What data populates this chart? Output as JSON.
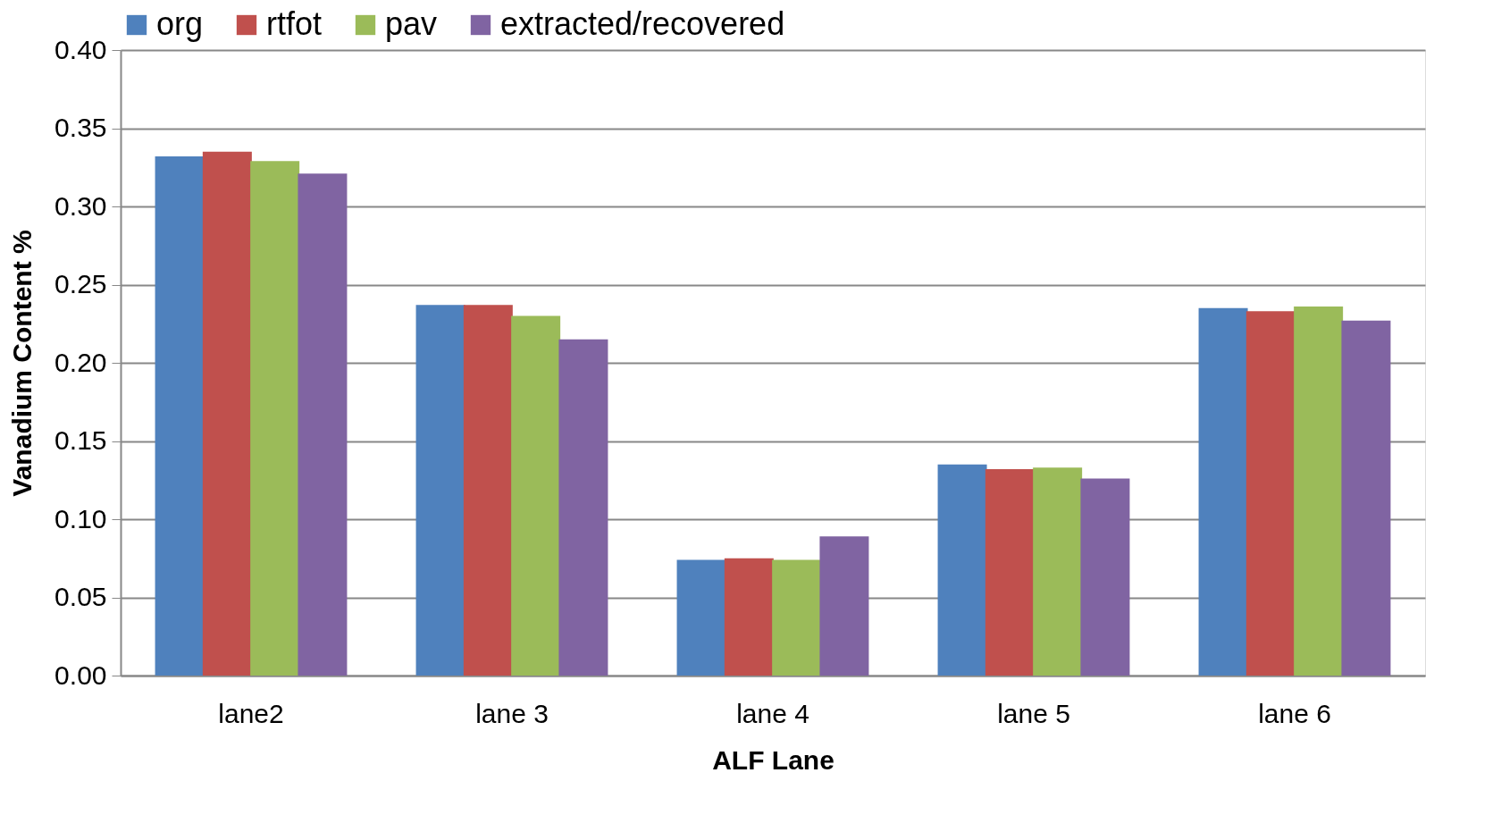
{
  "chart_data": {
    "type": "bar",
    "xlabel": "ALF Lane",
    "ylabel": "Vanadium Content  %",
    "categories": [
      "lane2",
      "lane 3",
      "lane 4",
      "lane 5",
      "lane 6"
    ],
    "series": [
      {
        "name": "org",
        "color": "#4f81bd",
        "values": [
          0.332,
          0.237,
          0.074,
          0.135,
          0.235
        ]
      },
      {
        "name": "rtfot",
        "color": "#c0504d",
        "values": [
          0.335,
          0.237,
          0.075,
          0.132,
          0.233
        ]
      },
      {
        "name": "pav",
        "color": "#9bbb59",
        "values": [
          0.329,
          0.23,
          0.074,
          0.133,
          0.236
        ]
      },
      {
        "name": "extracted/recovered",
        "color": "#8064a2",
        "values": [
          0.321,
          0.215,
          0.089,
          0.126,
          0.227
        ]
      }
    ],
    "ylim": [
      0,
      0.4
    ],
    "yticks": [
      {
        "value": 0,
        "label": "0.00"
      },
      {
        "value": 0.05,
        "label": "0.05"
      },
      {
        "value": 0.1,
        "label": "0.10"
      },
      {
        "value": 0.15,
        "label": "0.15"
      },
      {
        "value": 0.2,
        "label": "0.20"
      },
      {
        "value": 0.25,
        "label": "0.25"
      },
      {
        "value": 0.3,
        "label": "0.30"
      },
      {
        "value": 0.35,
        "label": "0.35"
      },
      {
        "value": 0.4,
        "label": "0.40"
      }
    ],
    "grid": "y",
    "legend": "top"
  }
}
